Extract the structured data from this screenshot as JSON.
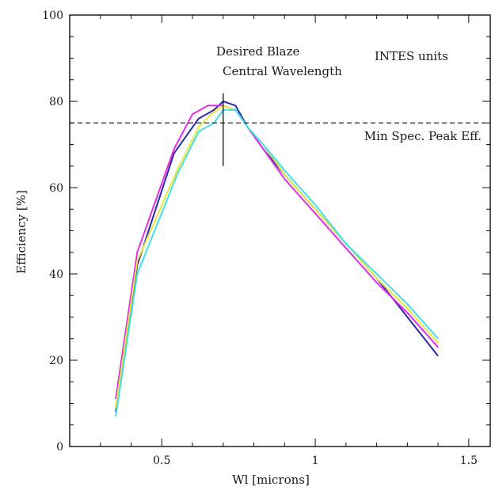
{
  "chart_data": {
    "type": "line",
    "title": "",
    "xlabel": "Wl [microns]",
    "ylabel": "Efficiency [%]",
    "xlim": [
      0.2,
      1.57
    ],
    "ylim": [
      0,
      100
    ],
    "x_ticks": [
      {
        "value": 0.5,
        "label": "0.5"
      },
      {
        "value": 1.0,
        "label": "1"
      },
      {
        "value": 1.5,
        "label": "1.5"
      }
    ],
    "y_ticks": [
      {
        "value": 0,
        "label": "0"
      },
      {
        "value": 20,
        "label": "20"
      },
      {
        "value": 40,
        "label": "40"
      },
      {
        "value": 60,
        "label": "60"
      },
      {
        "value": 80,
        "label": "80"
      },
      {
        "value": 100,
        "label": "100"
      }
    ],
    "grid": false,
    "legend": "none",
    "series": [
      {
        "color": "#2a2aa8",
        "x": [
          0.35,
          0.42,
          0.54,
          0.62,
          0.67,
          0.7,
          0.74,
          0.78,
          0.83,
          0.9,
          1.0,
          1.1,
          1.2,
          1.3,
          1.4
        ],
        "y": [
          8,
          42,
          68,
          76,
          78,
          80,
          79,
          74,
          69,
          63,
          55,
          47,
          39,
          30,
          21
        ]
      },
      {
        "color": "#e030e0",
        "x": [
          0.35,
          0.42,
          0.54,
          0.6,
          0.65,
          0.7,
          0.74,
          0.78,
          0.83,
          0.9,
          1.0,
          1.1,
          1.2,
          1.3,
          1.4
        ],
        "y": [
          11,
          45,
          69,
          77,
          79,
          79,
          78,
          74,
          69,
          62,
          54,
          46,
          38,
          31,
          23
        ]
      },
      {
        "color": "#e8e840",
        "x": [
          0.35,
          0.42,
          0.55,
          0.62,
          0.66,
          0.7,
          0.74,
          0.78,
          0.83,
          0.9,
          1.0,
          1.1,
          1.2,
          1.3,
          1.4
        ],
        "y": [
          9,
          43,
          64,
          74,
          77,
          79,
          78,
          74,
          70,
          63,
          55,
          47,
          39,
          32,
          24
        ]
      },
      {
        "color": "#40e0e8",
        "x": [
          0.35,
          0.42,
          0.55,
          0.62,
          0.67,
          0.7,
          0.74,
          0.78,
          0.83,
          0.9,
          1.0,
          1.1,
          1.2,
          1.3,
          1.4
        ],
        "y": [
          7,
          40,
          63,
          73,
          75,
          78,
          78,
          74,
          70,
          64,
          56,
          47,
          40,
          33,
          25
        ]
      }
    ],
    "reference_line": {
      "y": 75,
      "style": "dashed",
      "label": "Min Spec. Peak Eff."
    },
    "marker_line": {
      "x": 0.7,
      "y_range": [
        65,
        80
      ],
      "labels": [
        "Desired Blaze",
        "Central Wavelength"
      ]
    },
    "annotation": "INTES units"
  }
}
